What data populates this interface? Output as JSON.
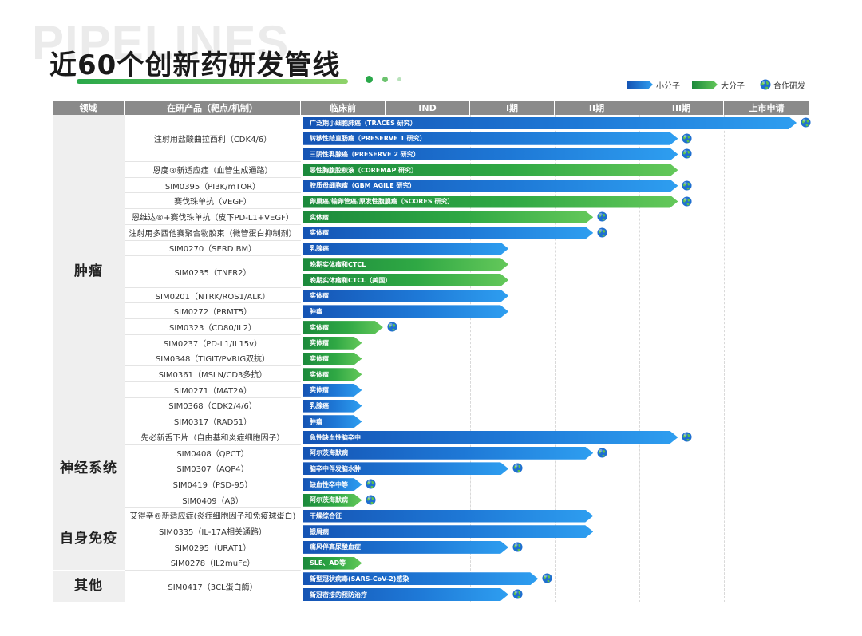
{
  "header": {
    "bg_word": "PIPELINES",
    "title": "近60个创新药研发管线"
  },
  "legend": {
    "small": "小分子",
    "large": "大分子",
    "partner": "合作研发",
    "colors": {
      "small": "#1e78d6",
      "large": "#2fa844"
    }
  },
  "columns": [
    {
      "label": "领域",
      "key": "domain"
    },
    {
      "label": "在研产品（靶点/机制）",
      "key": "product"
    },
    {
      "label": "临床前",
      "key": "preclinical"
    },
    {
      "label": "IND",
      "key": "ind"
    },
    {
      "label": "I期",
      "key": "p1"
    },
    {
      "label": "II期",
      "key": "p2"
    },
    {
      "label": "III期",
      "key": "p3"
    },
    {
      "label": "上市申请",
      "key": "nda"
    }
  ],
  "domains": [
    {
      "name_lines": [
        "肿瘤"
      ],
      "row_count": 20
    },
    {
      "name_lines": [
        "神经",
        "系统"
      ],
      "row_count": 5
    },
    {
      "name_lines": [
        "自身",
        "免疫"
      ],
      "row_count": 4
    },
    {
      "name_lines": [
        "其他"
      ],
      "row_count": 2
    }
  ],
  "products": [
    {
      "label": "注射用盐酸曲拉西利（CDK4/6）",
      "row_count": 3
    },
    {
      "label": "恩度®新适应症（血管生成通路）",
      "row_count": 1
    },
    {
      "label": "SIM0395（PI3K/mTOR）",
      "row_count": 1
    },
    {
      "label": "赛伐珠单抗（VEGF）",
      "row_count": 1
    },
    {
      "label": "恩维达®+赛伐珠单抗（皮下PD-L1+VEGF）",
      "row_count": 1
    },
    {
      "label": "注射用多西他赛聚合物胶束（微管蛋白抑制剂）",
      "row_count": 1
    },
    {
      "label": "SIM0270（SERD BM）",
      "row_count": 1
    },
    {
      "label": "SIM0235（TNFR2）",
      "row_count": 2
    },
    {
      "label": "SIM0201（NTRK/ROS1/ALK）",
      "row_count": 1
    },
    {
      "label": "SIM0272（PRMT5）",
      "row_count": 1
    },
    {
      "label": "SIM0323（CD80/IL2）",
      "row_count": 1
    },
    {
      "label": "SIM0237（PD-L1/IL15v）",
      "row_count": 1
    },
    {
      "label": "SIM0348（TIGIT/PVRIG双抗）",
      "row_count": 1
    },
    {
      "label": "SIM0361（MSLN/CD3多抗）",
      "row_count": 1
    },
    {
      "label": "SIM0271（MAT2A）",
      "row_count": 1
    },
    {
      "label": "SIM0368（CDK2/4/6）",
      "row_count": 1
    },
    {
      "label": "SIM0317（RAD51）",
      "row_count": 1
    },
    {
      "label": "先必新舌下片（自由基和炎症细胞因子）",
      "row_count": 1
    },
    {
      "label": "SIM0408（QPCT）",
      "row_count": 1
    },
    {
      "label": "SIM0307（AQP4）",
      "row_count": 1
    },
    {
      "label": "SIM0419（PSD-95）",
      "row_count": 1
    },
    {
      "label": "SIM0409（Aβ）",
      "row_count": 1
    },
    {
      "label": "艾得辛®新适应症(炎症细胞因子和免疫球蛋白)",
      "row_count": 1
    },
    {
      "label": "SIM0335（IL-17A相关通路）",
      "row_count": 1
    },
    {
      "label": "SIM0295（URAT1）",
      "row_count": 1
    },
    {
      "label": "SIM0278（IL2muFc）",
      "row_count": 1
    },
    {
      "label": "SIM0417（3CL蛋白酶）",
      "row_count": 2
    }
  ],
  "rows": [
    {
      "indication": "广泛期小细胞肺癌（TRACES 研究）",
      "type": "small",
      "progress": 5.85,
      "partner": true
    },
    {
      "indication": "转移性结直肠癌（PRESERVE 1 研究）",
      "type": "small",
      "progress": 4.45,
      "partner": true
    },
    {
      "indication": "三阴性乳腺癌（PRESERVE 2 研究）",
      "type": "small",
      "progress": 4.45,
      "partner": true
    },
    {
      "indication": "恶性胸腹腔积液（COREMAP 研究）",
      "type": "large",
      "progress": 4.45,
      "partner": false
    },
    {
      "indication": "胶质母细胞瘤（GBM AGILE 研究）",
      "type": "small",
      "progress": 4.45,
      "partner": true
    },
    {
      "indication": "卵巢癌/输卵管癌/原发性腹膜癌（SCORES 研究）",
      "type": "large",
      "progress": 4.45,
      "partner": true
    },
    {
      "indication": "实体瘤",
      "type": "large",
      "progress": 3.45,
      "partner": true
    },
    {
      "indication": "实体瘤",
      "type": "small",
      "progress": 3.45,
      "partner": true
    },
    {
      "indication": "乳腺癌",
      "type": "small",
      "progress": 2.45,
      "partner": false
    },
    {
      "indication": "晚期实体瘤和CTCL",
      "type": "large",
      "progress": 2.45,
      "partner": false
    },
    {
      "indication": "晚期实体瘤和CTCL（美国）",
      "type": "large",
      "progress": 2.45,
      "partner": false
    },
    {
      "indication": "实体瘤",
      "type": "small",
      "progress": 2.45,
      "partner": false
    },
    {
      "indication": "肿瘤",
      "type": "small",
      "progress": 2.45,
      "partner": false
    },
    {
      "indication": "实体瘤",
      "type": "large",
      "progress": 0.97,
      "partner": true
    },
    {
      "indication": "实体瘤",
      "type": "large",
      "progress": 0.72,
      "partner": false
    },
    {
      "indication": "实体瘤",
      "type": "large",
      "progress": 0.72,
      "partner": false
    },
    {
      "indication": "实体瘤",
      "type": "large",
      "progress": 0.72,
      "partner": false
    },
    {
      "indication": "实体瘤",
      "type": "small",
      "progress": 0.72,
      "partner": false
    },
    {
      "indication": "乳腺癌",
      "type": "small",
      "progress": 0.72,
      "partner": false
    },
    {
      "indication": "肿瘤",
      "type": "small",
      "progress": 0.72,
      "partner": false
    },
    {
      "indication": "急性缺血性脑卒中",
      "type": "small",
      "progress": 4.45,
      "partner": true
    },
    {
      "indication": "阿尔茨海默病",
      "type": "small",
      "progress": 3.45,
      "partner": true
    },
    {
      "indication": "脑卒中伴发脑水肿",
      "type": "small",
      "progress": 2.45,
      "partner": true
    },
    {
      "indication": "缺血性卒中等",
      "type": "small",
      "progress": 0.72,
      "partner": true
    },
    {
      "indication": "阿尔茨海默病",
      "type": "large",
      "progress": 0.72,
      "partner": true
    },
    {
      "indication": "干燥综合征",
      "type": "small",
      "progress": 3.45,
      "partner": false
    },
    {
      "indication": "银屑病",
      "type": "small",
      "progress": 3.45,
      "partner": false
    },
    {
      "indication": "痛风伴高尿酸血症",
      "type": "small",
      "progress": 2.45,
      "partner": true
    },
    {
      "indication": "SLE、AD等",
      "type": "large",
      "progress": 0.72,
      "partner": false
    },
    {
      "indication": "新型冠状病毒(SARS-CoV-2)感染",
      "type": "small",
      "progress": 2.8,
      "partner": true
    },
    {
      "indication": "新冠密接的预防治疗",
      "type": "small",
      "progress": 2.45,
      "partner": true
    }
  ]
}
